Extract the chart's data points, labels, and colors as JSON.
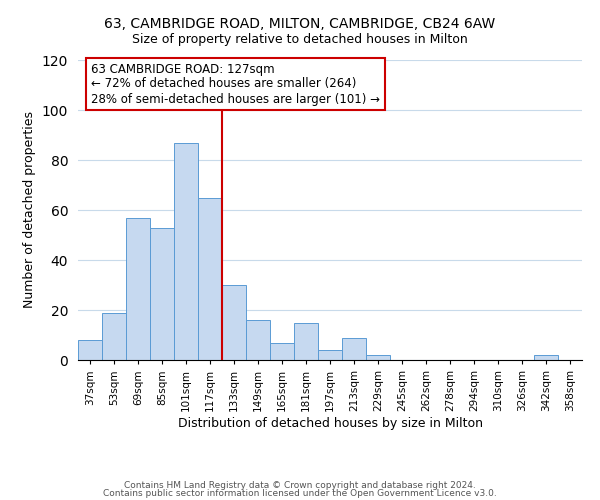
{
  "title1": "63, CAMBRIDGE ROAD, MILTON, CAMBRIDGE, CB24 6AW",
  "title2": "Size of property relative to detached houses in Milton",
  "xlabel": "Distribution of detached houses by size in Milton",
  "ylabel": "Number of detached properties",
  "bar_labels": [
    "37sqm",
    "53sqm",
    "69sqm",
    "85sqm",
    "101sqm",
    "117sqm",
    "133sqm",
    "149sqm",
    "165sqm",
    "181sqm",
    "197sqm",
    "213sqm",
    "229sqm",
    "245sqm",
    "262sqm",
    "278sqm",
    "294sqm",
    "310sqm",
    "326sqm",
    "342sqm",
    "358sqm"
  ],
  "bar_values": [
    8,
    19,
    57,
    53,
    87,
    65,
    30,
    16,
    7,
    15,
    4,
    9,
    2,
    0,
    0,
    0,
    0,
    0,
    0,
    2,
    0
  ],
  "bar_color": "#c6d9f0",
  "bar_edge_color": "#5a9bd4",
  "vline_x": 5.5,
  "vline_color": "#cc0000",
  "annotation_title": "63 CAMBRIDGE ROAD: 127sqm",
  "annotation_line1": "← 72% of detached houses are smaller (264)",
  "annotation_line2": "28% of semi-detached houses are larger (101) →",
  "annotation_box_edge": "#cc0000",
  "ylim": [
    0,
    120
  ],
  "yticks": [
    0,
    20,
    40,
    60,
    80,
    100,
    120
  ],
  "footer1": "Contains HM Land Registry data © Crown copyright and database right 2024.",
  "footer2": "Contains public sector information licensed under the Open Government Licence v3.0."
}
